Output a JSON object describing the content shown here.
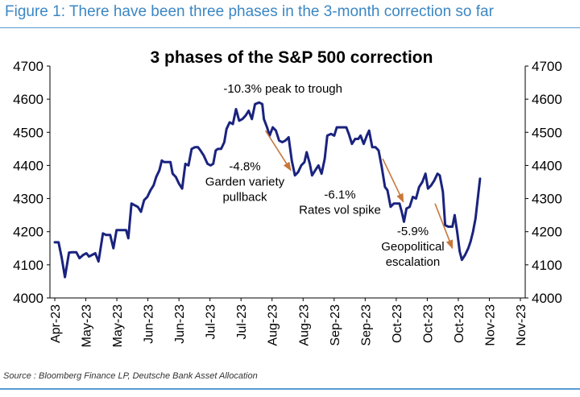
{
  "figure_title": "Figure 1: There have been three phases in the 3-month correction so far",
  "source": "Source : Bloomberg Finance LP, Deutsche Bank Asset Allocation",
  "colors": {
    "line": "#1a237e",
    "arrow": "#c8773b",
    "title": "#3b87c4",
    "rule": "#5a9bd3"
  },
  "chart_data": {
    "type": "line",
    "title": "3 phases of the S&P 500 correction",
    "xlabel": "",
    "ylabel": "",
    "ylim": [
      4000,
      4700
    ],
    "y_ticks": [
      4000,
      4100,
      4200,
      4300,
      4400,
      4500,
      4600,
      4700
    ],
    "x_range": [
      0,
      15
    ],
    "x_tick_labels": [
      "Apr-23",
      "May-23",
      "May-23",
      "Jun-23",
      "Jun-23",
      "Jul-23",
      "Jul-23",
      "Aug-23",
      "Aug-23",
      "Sep-23",
      "Sep-23",
      "Oct-23",
      "Oct-23",
      "Oct-23",
      "Nov-23",
      "Nov-23"
    ],
    "series": [
      {
        "name": "S&P 500",
        "points": [
          [
            0.0,
            4168
          ],
          [
            0.12,
            4168
          ],
          [
            0.22,
            4120
          ],
          [
            0.32,
            4063
          ],
          [
            0.45,
            4137
          ],
          [
            0.55,
            4138
          ],
          [
            0.68,
            4138
          ],
          [
            0.78,
            4120
          ],
          [
            0.9,
            4130
          ],
          [
            1.0,
            4135
          ],
          [
            1.08,
            4125
          ],
          [
            1.18,
            4130
          ],
          [
            1.28,
            4135
          ],
          [
            1.38,
            4110
          ],
          [
            1.52,
            4195
          ],
          [
            1.62,
            4190
          ],
          [
            1.75,
            4190
          ],
          [
            1.85,
            4150
          ],
          [
            1.95,
            4205
          ],
          [
            2.05,
            4205
          ],
          [
            2.15,
            4205
          ],
          [
            2.25,
            4205
          ],
          [
            2.32,
            4180
          ],
          [
            2.42,
            4285
          ],
          [
            2.52,
            4280
          ],
          [
            2.62,
            4275
          ],
          [
            2.72,
            4260
          ],
          [
            2.82,
            4295
          ],
          [
            2.92,
            4305
          ],
          [
            3.02,
            4325
          ],
          [
            3.12,
            4340
          ],
          [
            3.2,
            4365
          ],
          [
            3.3,
            4385
          ],
          [
            3.38,
            4415
          ],
          [
            3.45,
            4410
          ],
          [
            3.55,
            4410
          ],
          [
            3.65,
            4410
          ],
          [
            3.72,
            4375
          ],
          [
            3.82,
            4365
          ],
          [
            3.92,
            4345
          ],
          [
            4.02,
            4330
          ],
          [
            4.12,
            4405
          ],
          [
            4.22,
            4400
          ],
          [
            4.32,
            4450
          ],
          [
            4.42,
            4455
          ],
          [
            4.52,
            4455
          ],
          [
            4.6,
            4445
          ],
          [
            4.7,
            4430
          ],
          [
            4.82,
            4405
          ],
          [
            4.92,
            4400
          ],
          [
            5.0,
            4405
          ],
          [
            5.08,
            4445
          ],
          [
            5.15,
            4450
          ],
          [
            5.25,
            4450
          ],
          [
            5.35,
            4470
          ],
          [
            5.42,
            4510
          ],
          [
            5.52,
            4530
          ],
          [
            5.62,
            4525
          ],
          [
            5.72,
            4570
          ],
          [
            5.82,
            4535
          ],
          [
            5.92,
            4540
          ],
          [
            6.02,
            4550
          ],
          [
            6.12,
            4565
          ],
          [
            6.22,
            4540
          ],
          [
            6.32,
            4585
          ],
          [
            6.45,
            4590
          ],
          [
            6.55,
            4585
          ],
          [
            6.6,
            4540
          ],
          [
            6.7,
            4515
          ],
          [
            6.78,
            4490
          ],
          [
            6.88,
            4515
          ],
          [
            6.98,
            4505
          ],
          [
            7.08,
            4475
          ],
          [
            7.18,
            4470
          ],
          [
            7.28,
            4475
          ],
          [
            7.38,
            4485
          ],
          [
            7.48,
            4415
          ],
          [
            7.58,
            4370
          ],
          [
            7.68,
            4380
          ],
          [
            7.78,
            4400
          ],
          [
            7.88,
            4410
          ],
          [
            7.95,
            4440
          ],
          [
            8.05,
            4405
          ],
          [
            8.12,
            4370
          ],
          [
            8.22,
            4385
          ],
          [
            8.32,
            4400
          ],
          [
            8.42,
            4375
          ],
          [
            8.52,
            4420
          ],
          [
            8.6,
            4490
          ],
          [
            8.72,
            4495
          ],
          [
            8.82,
            4490
          ],
          [
            8.9,
            4515
          ],
          [
            9.0,
            4515
          ],
          [
            9.1,
            4515
          ],
          [
            9.2,
            4515
          ],
          [
            9.28,
            4495
          ],
          [
            9.38,
            4465
          ],
          [
            9.48,
            4480
          ],
          [
            9.58,
            4480
          ],
          [
            9.65,
            4490
          ],
          [
            9.75,
            4465
          ],
          [
            9.85,
            4490
          ],
          [
            9.92,
            4505
          ],
          [
            10.02,
            4455
          ],
          [
            10.12,
            4455
          ],
          [
            10.22,
            4445
          ],
          [
            10.32,
            4395
          ],
          [
            10.42,
            4335
          ],
          [
            10.5,
            4325
          ],
          [
            10.6,
            4275
          ],
          [
            10.7,
            4285
          ],
          [
            10.8,
            4285
          ],
          [
            10.88,
            4285
          ],
          [
            10.95,
            4260
          ],
          [
            11.02,
            4230
          ],
          [
            11.1,
            4270
          ],
          [
            11.2,
            4275
          ],
          [
            11.3,
            4305
          ],
          [
            11.4,
            4300
          ],
          [
            11.5,
            4335
          ],
          [
            11.6,
            4350
          ],
          [
            11.7,
            4375
          ],
          [
            11.78,
            4330
          ],
          [
            11.88,
            4340
          ],
          [
            11.98,
            4355
          ],
          [
            12.08,
            4375
          ],
          [
            12.15,
            4370
          ],
          [
            12.25,
            4320
          ],
          [
            12.32,
            4220
          ],
          [
            12.42,
            4215
          ],
          [
            12.55,
            4215
          ],
          [
            12.62,
            4250
          ],
          [
            12.7,
            4200
          ],
          [
            12.78,
            4140
          ],
          [
            12.85,
            4115
          ],
          [
            12.95,
            4130
          ],
          [
            13.05,
            4150
          ],
          [
            13.12,
            4170
          ],
          [
            13.2,
            4200
          ],
          [
            13.28,
            4240
          ],
          [
            13.35,
            4300
          ],
          [
            13.42,
            4360
          ]
        ]
      }
    ],
    "annotations": [
      {
        "id": "peak",
        "lines": [
          "-10.3% peak to trough"
        ],
        "x": 7.2,
        "y": 4620
      },
      {
        "id": "phase1",
        "lines": [
          "-4.8%",
          "Garden variety",
          "pullback"
        ],
        "x": 6.0,
        "y": 4385
      },
      {
        "id": "phase2",
        "lines": [
          "-6.1%",
          "Rates vol spike"
        ],
        "x": 9.0,
        "y": 4300
      },
      {
        "id": "phase3",
        "lines": [
          "-5.9%",
          "Geopolitical",
          "escalation"
        ],
        "x": 11.3,
        "y": 4190
      }
    ],
    "arrows": [
      {
        "from": [
          6.65,
          4505
        ],
        "to": [
          7.45,
          4385
        ]
      },
      {
        "from": [
          10.35,
          4420
        ],
        "to": [
          11.0,
          4290
        ]
      },
      {
        "from": [
          12.0,
          4285
        ],
        "to": [
          12.55,
          4150
        ]
      }
    ],
    "grid": false,
    "legend": "none"
  }
}
